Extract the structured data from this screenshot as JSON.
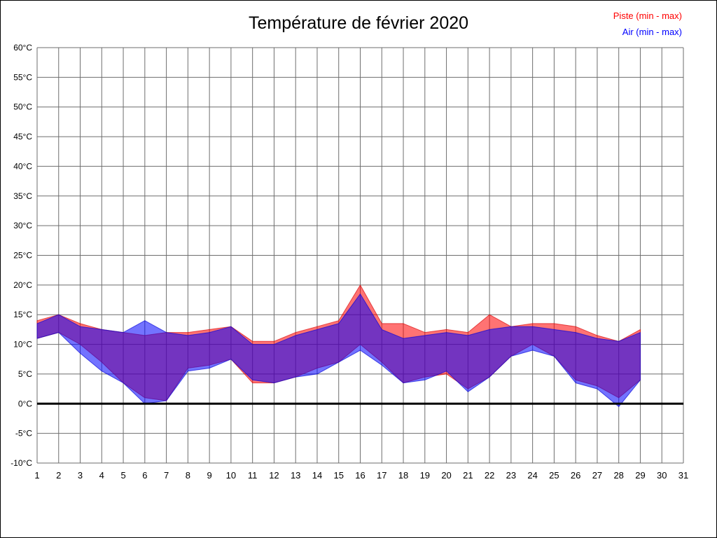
{
  "title": "Température de février 2020",
  "legend": {
    "piste_label": "Piste (min - max)",
    "air_label": "Air (min - max)",
    "piste_color": "#ff0000",
    "air_color": "#0000ff"
  },
  "chart_data": {
    "type": "area",
    "title": "Température de février 2020",
    "grid": true,
    "grid_color": "#6e6e6e",
    "x_range": [
      1,
      31
    ],
    "ylim": [
      -10,
      60
    ],
    "y_step": 5,
    "zero_line_value": 0,
    "zero_line_color": "#000000",
    "x_ticks": [
      1,
      2,
      3,
      4,
      5,
      6,
      7,
      8,
      9,
      10,
      11,
      12,
      13,
      14,
      15,
      16,
      17,
      18,
      19,
      20,
      21,
      22,
      23,
      24,
      25,
      26,
      27,
      28,
      29,
      30,
      31
    ],
    "y_ticks": [
      {
        "value": 60,
        "label": "60°C"
      },
      {
        "value": 55,
        "label": "55°C"
      },
      {
        "value": 50,
        "label": "50°C"
      },
      {
        "value": 45,
        "label": "45°C"
      },
      {
        "value": 40,
        "label": "40°C"
      },
      {
        "value": 35,
        "label": "35°C"
      },
      {
        "value": 30,
        "label": "30°C"
      },
      {
        "value": 25,
        "label": "25°C"
      },
      {
        "value": 20,
        "label": "20°C"
      },
      {
        "value": 15,
        "label": "15°C"
      },
      {
        "value": 10,
        "label": "10°C"
      },
      {
        "value": 5,
        "label": "5°C"
      },
      {
        "value": 0,
        "label": "0°C"
      },
      {
        "value": -5,
        "label": "-5°C"
      },
      {
        "value": -10,
        "label": "-10°C"
      }
    ],
    "series": [
      {
        "name": "Piste (min - max)",
        "slug": "piste-band",
        "fill": "rgba(255,0,0,0.55)",
        "stroke": "rgba(215,0,0,0.65)",
        "days": [
          1,
          2,
          3,
          4,
          5,
          6,
          7,
          8,
          9,
          10,
          11,
          12,
          13,
          14,
          15,
          16,
          17,
          18,
          19,
          20,
          21,
          22,
          23,
          24,
          25,
          26,
          27,
          28,
          29
        ],
        "min": [
          11,
          12,
          10,
          7,
          3.5,
          1,
          0.5,
          6,
          6.5,
          7.5,
          3.5,
          3.5,
          4.5,
          6,
          7,
          10,
          7,
          3.5,
          4.5,
          5,
          2.5,
          4.5,
          8,
          10,
          8,
          4,
          3,
          1,
          4
        ],
        "max": [
          14,
          15,
          13.5,
          12.5,
          12,
          11.5,
          12,
          12,
          12.5,
          13,
          10.5,
          10.5,
          12,
          13,
          14,
          20,
          13.5,
          13.5,
          12,
          12.5,
          12,
          15,
          13,
          13.5,
          13.5,
          13,
          11.5,
          10.5,
          12.5
        ]
      },
      {
        "name": "Air (min - max)",
        "slug": "air-band",
        "fill": "rgba(0,0,255,0.55)",
        "stroke": "rgba(0,0,215,0.65)",
        "days": [
          1,
          2,
          3,
          4,
          5,
          6,
          7,
          8,
          9,
          10,
          11,
          12,
          13,
          14,
          15,
          16,
          17,
          18,
          19,
          20,
          21,
          22,
          23,
          24,
          25,
          26,
          27,
          28,
          29
        ],
        "min": [
          11,
          12,
          8.5,
          5.5,
          3.5,
          0,
          0.5,
          5.5,
          6,
          7.5,
          4,
          3.5,
          4.5,
          5,
          7,
          9,
          6.5,
          3.5,
          4,
          5.5,
          2,
          4.5,
          8,
          9,
          8,
          3.5,
          2.5,
          -0.5,
          4
        ],
        "max": [
          13.5,
          15,
          13,
          12.5,
          12,
          14,
          12,
          11.5,
          12,
          13,
          10,
          10,
          11.5,
          12.5,
          13.5,
          18.5,
          12.5,
          11,
          11.5,
          12,
          11.5,
          12.5,
          13,
          13,
          12.5,
          12,
          11,
          10.5,
          12
        ]
      }
    ]
  }
}
